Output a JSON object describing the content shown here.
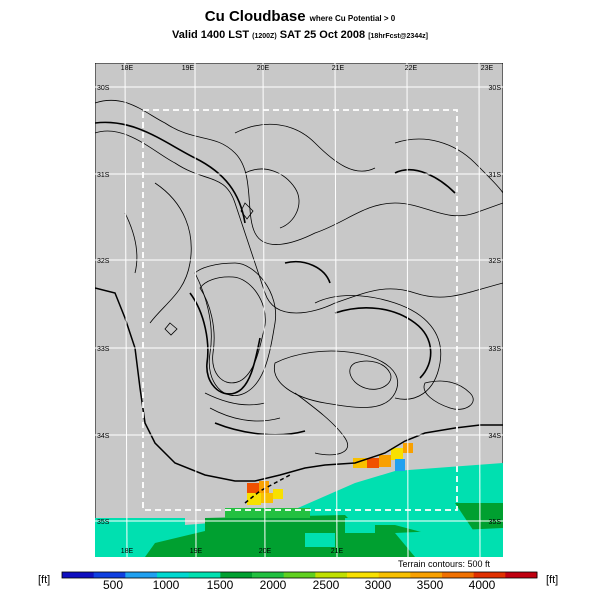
{
  "header": {
    "title": "Cu Cloudbase",
    "title_suffix": "where Cu Potential > 0",
    "valid_prefix": "Valid 1400 LST",
    "valid_utc": "(1200Z)",
    "valid_date": "SAT 25 Oct 2008",
    "forecast_info": "[18hrFcst@2344z]"
  },
  "map": {
    "lon_labels": [
      "18E",
      "19E",
      "20E",
      "21E",
      "22E",
      "23E"
    ],
    "lat_labels": [
      "30S",
      "31S",
      "32S",
      "33S",
      "34S",
      "35S"
    ],
    "terrain_note": "Terrain contours: 500 ft",
    "colors": {
      "background": "#c8c8c8",
      "sea_teal": "#00e0b0",
      "green_dark": "#00a030",
      "green_mid": "#22c040",
      "yellow": "#f8e000",
      "orange": "#f8a000",
      "red_orange": "#f05000",
      "blue": "#20a0f0"
    }
  },
  "colorbar": {
    "unit_left": "[ft]",
    "unit_right": "[ft]",
    "labels": [
      "500",
      "1000",
      "1500",
      "2000",
      "2500",
      "3000",
      "3500",
      "4000"
    ],
    "colors": [
      "#1010c0",
      "#1040e0",
      "#20a0f0",
      "#00d8d0",
      "#00e0b0",
      "#00a030",
      "#22c040",
      "#60d020",
      "#c0e000",
      "#f8e000",
      "#f8c000",
      "#f8a000",
      "#f07000",
      "#e03000",
      "#c00010"
    ]
  }
}
